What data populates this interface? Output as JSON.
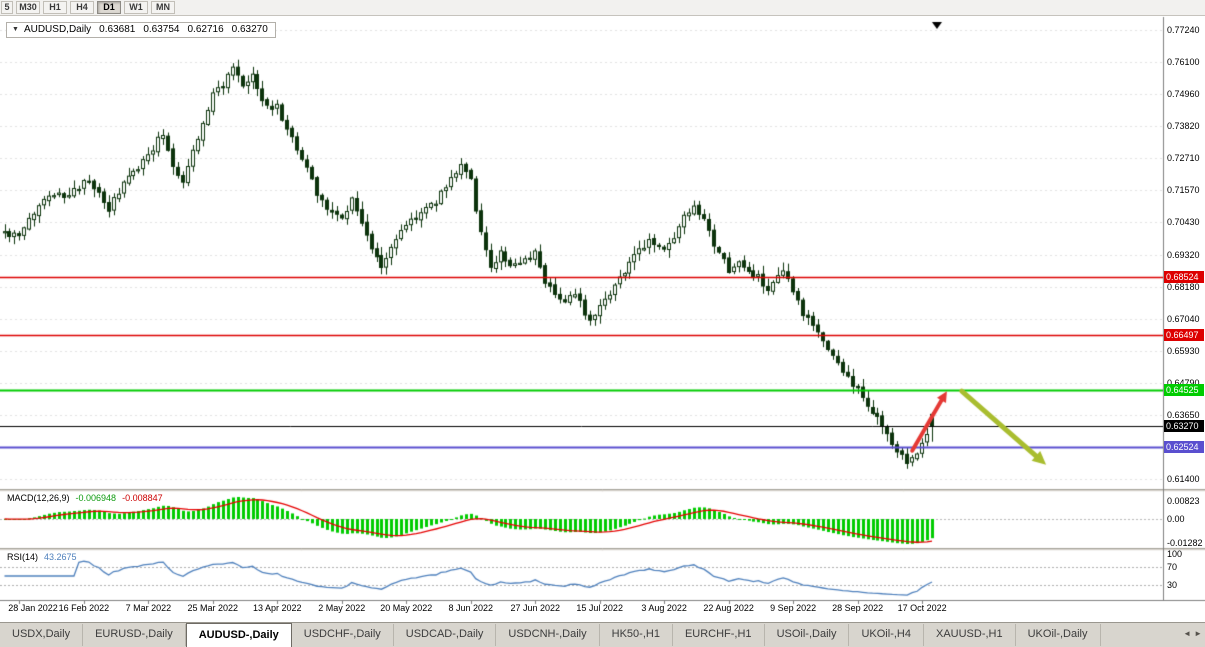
{
  "period_toolbar": {
    "buttons": [
      "5",
      "M30",
      "H1",
      "H4",
      "D1",
      "W1",
      "MN"
    ],
    "active": "D1"
  },
  "chart_header": {
    "symbol": "AUDUSD,Daily",
    "open": "0.63681",
    "high": "0.63754",
    "low": "0.62716",
    "close": "0.63270",
    "dropdown_icon": "▼"
  },
  "macd_panel": {
    "label": "MACD(12,26,9)",
    "main_value": "-0.006948",
    "signal_value": "-0.008847",
    "histogram_color": "#00cc00",
    "signal_color": "#e60000",
    "axis_ticks": [
      {
        "label": "0.00823",
        "value": 0.00823
      },
      {
        "label": "0.00",
        "value": 0
      },
      {
        "label": "-0.01282",
        "value": -0.01282
      }
    ]
  },
  "rsi_panel": {
    "label": "RSI(14)",
    "value": "43.2675",
    "line_color": "#4f81bd",
    "level_lines": [
      70,
      30
    ],
    "axis_ticks": [
      {
        "label": "100",
        "value": 100
      },
      {
        "label": "70",
        "value": 70
      },
      {
        "label": "30",
        "value": 30
      }
    ]
  },
  "tab_bar": {
    "tabs": [
      "USDX,Daily",
      "EURUSD-,Daily",
      "AUDUSD-,Daily",
      "USDCHF-,Daily",
      "USDCAD-,Daily",
      "USDCNH-,Daily",
      "HK50-,H1",
      "EURCHF-,H1",
      "USOil-,Daily",
      "UKOil-,H4",
      "XAUUSD-,H1",
      "UKOil-,Daily"
    ],
    "active_tab": "AUDUSD-,Daily",
    "scroll_left_icon": "◄",
    "scroll_right_icon": "►"
  },
  "chart_data": {
    "type": "candlestick",
    "title": "AUDUSD,Daily",
    "symbol": "AUDUSD",
    "timeframe": "Daily",
    "num_bars": 188,
    "seed": 42,
    "y_axis": {
      "min": 0.614,
      "max": 0.7724,
      "tick_labels": [
        "0.77240",
        "0.76100",
        "0.74960",
        "0.73820",
        "0.72710",
        "0.71570",
        "0.70430",
        "0.69320",
        "0.68180",
        "0.67040",
        "0.65930",
        "0.64790",
        "0.63650",
        "0.62510",
        "0.61400"
      ]
    },
    "x_axis": {
      "labels": [
        "28 Jan 2022",
        "16 Feb 2022",
        "7 Mar 2022",
        "25 Mar 2022",
        "13 Apr 2022",
        "2 May 2022",
        "20 May 2022",
        "8 Jun 2022",
        "27 Jun 2022",
        "15 Jul 2022",
        "3 Aug 2022",
        "22 Aug 2022",
        "9 Sep 2022",
        "28 Sep 2022",
        "17 Oct 2022"
      ],
      "first_label_bar_index": 3,
      "label_step_bars": 13
    },
    "last_bar": {
      "open": 0.63681,
      "high": 0.63754,
      "low": 0.62716,
      "close": 0.6327
    },
    "horizontal_lines": [
      {
        "price": 0.68524,
        "label": "0.68524",
        "color": "#dd0000",
        "line_width": 1.5
      },
      {
        "price": 0.66497,
        "label": "0.66497",
        "color": "#dd0000",
        "line_width": 1.5
      },
      {
        "price": 0.64525,
        "label": "0.64525",
        "color": "#00cc00",
        "line_width": 2
      },
      {
        "price": 0.6327,
        "label": "0.63270",
        "color": "#000000",
        "line_width": 1
      },
      {
        "price": 0.62524,
        "label": "0.62524",
        "color": "#5a4fcf",
        "line_width": 2
      }
    ],
    "candle_colors": {
      "bull_fill": "#ffffff",
      "bear_fill": "#0c330c",
      "outline": "#0c330c"
    },
    "trend_anchors": [
      [
        0,
        0.701
      ],
      [
        3,
        0.6992
      ],
      [
        6,
        0.708
      ],
      [
        9,
        0.715
      ],
      [
        13,
        0.7135
      ],
      [
        16,
        0.719
      ],
      [
        19,
        0.715
      ],
      [
        21,
        0.709
      ],
      [
        24,
        0.718
      ],
      [
        27,
        0.724
      ],
      [
        30,
        0.731
      ],
      [
        32,
        0.736
      ],
      [
        34,
        0.725
      ],
      [
        36,
        0.719
      ],
      [
        38,
        0.73
      ],
      [
        40,
        0.739
      ],
      [
        42,
        0.75
      ],
      [
        44,
        0.753
      ],
      [
        46,
        0.7585
      ],
      [
        48,
        0.752
      ],
      [
        50,
        0.756
      ],
      [
        52,
        0.747
      ],
      [
        55,
        0.745
      ],
      [
        57,
        0.738
      ],
      [
        59,
        0.73
      ],
      [
        61,
        0.724
      ],
      [
        63,
        0.715
      ],
      [
        66,
        0.708
      ],
      [
        68,
        0.706
      ],
      [
        70,
        0.713
      ],
      [
        72,
        0.705
      ],
      [
        74,
        0.695
      ],
      [
        76,
        0.6885
      ],
      [
        78,
        0.696
      ],
      [
        81,
        0.704
      ],
      [
        84,
        0.708
      ],
      [
        87,
        0.712
      ],
      [
        90,
        0.72
      ],
      [
        92,
        0.7255
      ],
      [
        94,
        0.7195
      ],
      [
        96,
        0.7
      ],
      [
        98,
        0.689
      ],
      [
        100,
        0.6935
      ],
      [
        102,
        0.69
      ],
      [
        104,
        0.689
      ],
      [
        107,
        0.6935
      ],
      [
        109,
        0.684
      ],
      [
        111,
        0.68
      ],
      [
        113,
        0.6765
      ],
      [
        115,
        0.679
      ],
      [
        117,
        0.673
      ],
      [
        118,
        0.67
      ],
      [
        120,
        0.676
      ],
      [
        122,
        0.68
      ],
      [
        124,
        0.685
      ],
      [
        126,
        0.6905
      ],
      [
        128,
        0.694
      ],
      [
        130,
        0.6985
      ],
      [
        133,
        0.6945
      ],
      [
        135,
        0.699
      ],
      [
        137,
        0.706
      ],
      [
        139,
        0.709
      ],
      [
        141,
        0.705
      ],
      [
        143,
        0.696
      ],
      [
        146,
        0.688
      ],
      [
        148,
        0.69
      ],
      [
        150,
        0.687
      ],
      [
        152,
        0.685
      ],
      [
        154,
        0.68
      ],
      [
        156,
        0.6845
      ],
      [
        157,
        0.687
      ],
      [
        159,
        0.68
      ],
      [
        161,
        0.672
      ],
      [
        163,
        0.668
      ],
      [
        164,
        0.666
      ],
      [
        166,
        0.66
      ],
      [
        168,
        0.6545
      ],
      [
        170,
        0.65
      ],
      [
        172,
        0.645
      ],
      [
        174,
        0.64
      ],
      [
        176,
        0.636
      ],
      [
        178,
        0.629
      ],
      [
        180,
        0.624
      ],
      [
        182,
        0.6195
      ],
      [
        184,
        0.624
      ],
      [
        186,
        0.63
      ],
      [
        187,
        0.6327
      ]
    ],
    "annotations": [
      {
        "type": "arrow",
        "direction": "up-right",
        "color": "#e53935",
        "line_width": 4,
        "from_bar": 183,
        "from_price": 0.624,
        "to_bar": 190,
        "to_price": 0.645
      },
      {
        "type": "arrow",
        "direction": "down-right",
        "color": "#a9bd2f",
        "line_width": 5,
        "from_bar": 193,
        "from_price": 0.645,
        "to_bar": 210,
        "to_price": 0.619
      }
    ],
    "shift_marker_bar": 188
  }
}
